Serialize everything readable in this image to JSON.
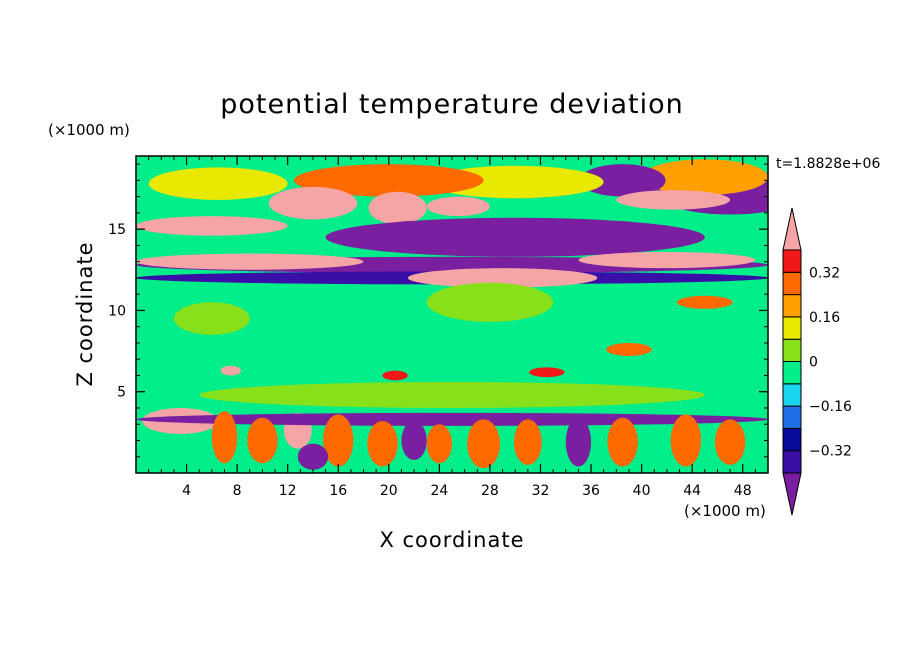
{
  "chart_data": {
    "type": "heatmap",
    "title": "potential temperature deviation",
    "xlabel": "X coordinate",
    "ylabel": "Z coordinate",
    "x_unit": "(×1000 m)",
    "y_unit": "(×1000 m)",
    "time_label": "t=1.8828e+06",
    "xlim": [
      0,
      50
    ],
    "ylim": [
      0,
      19.5
    ],
    "x_ticks": [
      "4",
      "8",
      "12",
      "16",
      "20",
      "24",
      "28",
      "32",
      "36",
      "40",
      "44",
      "48"
    ],
    "y_ticks": [
      "5",
      "10",
      "15"
    ],
    "colorbar": {
      "levels": [
        -0.48,
        -0.4,
        -0.32,
        -0.24,
        -0.16,
        -0.08,
        0,
        0.08,
        0.16,
        0.24,
        0.32,
        0.4
      ],
      "labels": [
        "0.32",
        "0.16",
        "0",
        "−0.16",
        "−0.32"
      ],
      "colors": [
        "#7a1fa0",
        "#3a0fa8",
        "#0a0a9c",
        "#1f6fe8",
        "#19d5ee",
        "#00ee8a",
        "#88e01a",
        "#e8e800",
        "#ffa000",
        "#ff6a00",
        "#f21818",
        "#f5a5a5"
      ]
    },
    "features": [
      {
        "x": 47,
        "z": 17.2,
        "value": -0.44,
        "rx": 5.8,
        "rz": 1.3
      },
      {
        "x": 45,
        "z": 18.2,
        "value": 0.22,
        "rx": 5.0,
        "rz": 1.1
      },
      {
        "x": 38.5,
        "z": 18.0,
        "value": -0.46,
        "rx": 3.4,
        "rz": 1.0
      },
      {
        "x": 30,
        "z": 17.9,
        "value": 0.1,
        "rx": 7.0,
        "rz": 1.0
      },
      {
        "x": 20,
        "z": 18.0,
        "value": 0.26,
        "rx": 7.5,
        "rz": 1.0
      },
      {
        "x": 6.5,
        "z": 17.8,
        "value": 0.08,
        "rx": 5.5,
        "rz": 1.0
      },
      {
        "x": 6,
        "z": 15.2,
        "value": 0.45,
        "rx": 6.0,
        "rz": 0.6
      },
      {
        "x": 14,
        "z": 16.6,
        "value": 0.45,
        "rx": 3.5,
        "rz": 1.0
      },
      {
        "x": 20.7,
        "z": 16.3,
        "value": 0.45,
        "rx": 2.3,
        "rz": 1.0
      },
      {
        "x": 25.5,
        "z": 16.4,
        "value": 0.45,
        "rx": 2.5,
        "rz": 0.6
      },
      {
        "x": 42.5,
        "z": 16.8,
        "value": 0.45,
        "rx": 4.5,
        "rz": 0.6
      },
      {
        "x": 30,
        "z": 14.5,
        "value": -0.44,
        "rx": 15.0,
        "rz": 1.2
      },
      {
        "x": 25,
        "z": 12.8,
        "value": -0.46,
        "rx": 25.0,
        "rz": 0.5
      },
      {
        "x": 25,
        "z": 12.0,
        "value": -0.36,
        "rx": 25.0,
        "rz": 0.4
      },
      {
        "x": 9,
        "z": 13.0,
        "value": 0.45,
        "rx": 9.0,
        "rz": 0.5
      },
      {
        "x": 29,
        "z": 12.0,
        "value": 0.45,
        "rx": 7.5,
        "rz": 0.6
      },
      {
        "x": 42,
        "z": 13.1,
        "value": 0.45,
        "rx": 7.0,
        "rz": 0.5
      },
      {
        "x": 45,
        "z": 10.5,
        "value": 0.3,
        "rx": 2.2,
        "rz": 0.4
      },
      {
        "x": 28,
        "z": 10.5,
        "value": 0.06,
        "rx": 5.0,
        "rz": 1.2
      },
      {
        "x": 6,
        "z": 9.5,
        "value": 0.06,
        "rx": 3.0,
        "rz": 1.0
      },
      {
        "x": 39,
        "z": 7.6,
        "value": 0.3,
        "rx": 1.8,
        "rz": 0.4
      },
      {
        "x": 7.5,
        "z": 6.3,
        "value": 0.4,
        "rx": 0.8,
        "rz": 0.3
      },
      {
        "x": 20.5,
        "z": 6.0,
        "value": 0.36,
        "rx": 1.0,
        "rz": 0.3
      },
      {
        "x": 32.5,
        "z": 6.2,
        "value": 0.36,
        "rx": 1.4,
        "rz": 0.3
      },
      {
        "x": 25,
        "z": 4.8,
        "value": 0.06,
        "rx": 20.0,
        "rz": 0.8
      },
      {
        "x": 3.5,
        "z": 3.2,
        "value": 0.45,
        "rx": 3.0,
        "rz": 0.8
      },
      {
        "x": 12.8,
        "z": 2.6,
        "value": 0.45,
        "rx": 1.1,
        "rz": 1.1
      },
      {
        "x": 25,
        "z": 3.3,
        "value": -0.46,
        "rx": 25.0,
        "rz": 0.4
      },
      {
        "x": 7,
        "z": 2.2,
        "value": 0.3,
        "rx": 1.0,
        "rz": 1.6
      },
      {
        "x": 10,
        "z": 2.0,
        "value": 0.3,
        "rx": 1.2,
        "rz": 1.4
      },
      {
        "x": 16,
        "z": 2.0,
        "value": 0.3,
        "rx": 1.2,
        "rz": 1.6
      },
      {
        "x": 19.5,
        "z": 1.8,
        "value": 0.3,
        "rx": 1.2,
        "rz": 1.4
      },
      {
        "x": 24,
        "z": 1.8,
        "value": 0.3,
        "rx": 1.0,
        "rz": 1.2
      },
      {
        "x": 27.5,
        "z": 1.8,
        "value": 0.3,
        "rx": 1.3,
        "rz": 1.5
      },
      {
        "x": 31,
        "z": 1.9,
        "value": 0.3,
        "rx": 1.1,
        "rz": 1.4
      },
      {
        "x": 35,
        "z": 1.9,
        "value": -0.44,
        "rx": 1.0,
        "rz": 1.5
      },
      {
        "x": 38.5,
        "z": 1.9,
        "value": 0.3,
        "rx": 1.2,
        "rz": 1.5
      },
      {
        "x": 43.5,
        "z": 2.0,
        "value": 0.3,
        "rx": 1.2,
        "rz": 1.6
      },
      {
        "x": 47,
        "z": 1.9,
        "value": 0.3,
        "rx": 1.2,
        "rz": 1.4
      },
      {
        "x": 22,
        "z": 2.0,
        "value": -0.44,
        "rx": 1.0,
        "rz": 1.2
      },
      {
        "x": 14,
        "z": 1.0,
        "value": -0.42,
        "rx": 1.2,
        "rz": 0.8
      }
    ]
  }
}
